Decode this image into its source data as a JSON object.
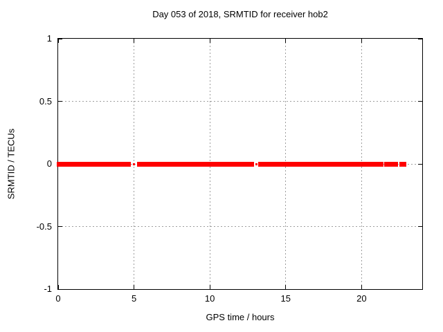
{
  "title": "Day 053 of 2018, SRMTID for receiver hob2",
  "chart_data": {
    "type": "scatter",
    "title": "Day 053 of 2018, SRMTID for receiver hob2",
    "xlabel": "GPS time / hours",
    "ylabel": "SRMTID / TECUs",
    "xlim": [
      0,
      24
    ],
    "ylim": [
      -1,
      1
    ],
    "x_ticks": [
      0,
      5,
      10,
      15,
      20
    ],
    "y_ticks": [
      1,
      0.5,
      0,
      -0.5,
      -1
    ],
    "grid": true,
    "legend": "none",
    "series": [
      {
        "name": "SRMTID",
        "marker": "square",
        "color": "#ff0000",
        "y_value": 0,
        "segments_hours": [
          [
            0,
            4.7
          ],
          [
            5.3,
            12.8
          ],
          [
            13.3,
            21.35
          ],
          [
            21.6,
            22.3
          ],
          [
            22.6,
            22.85
          ]
        ],
        "isolated_points_hours": [
          5.0,
          13.05
        ]
      }
    ],
    "colors": {
      "data": "#ff0000",
      "grid": "#9c9c9c",
      "border": "#000000",
      "text": "#000000",
      "background": "#ffffff"
    }
  }
}
